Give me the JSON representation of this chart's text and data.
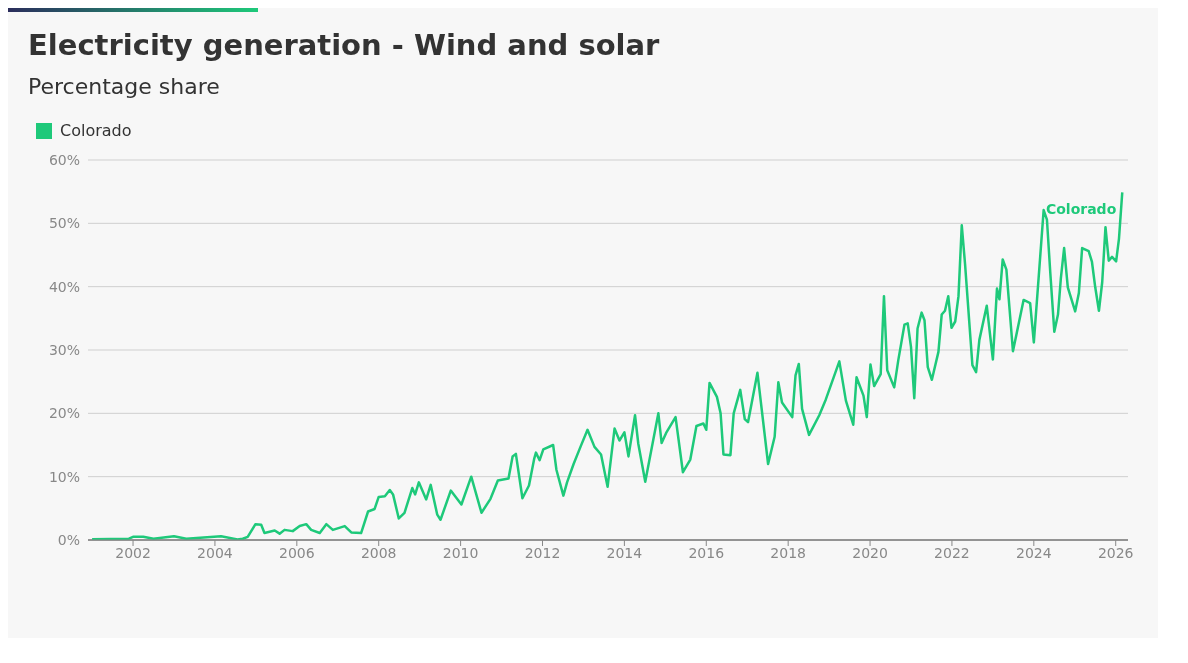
{
  "chart_data": {
    "type": "line",
    "title": "Electricity generation - Wind and solar",
    "subtitle": "Percentage share",
    "x": [
      2001.0,
      2001.9,
      2002.0,
      2002.25,
      2002.5,
      2003.0,
      2003.3,
      2004.15,
      2004.55,
      2004.68,
      2004.8,
      2004.99,
      2005.13,
      2005.21,
      2005.46,
      2005.58,
      2005.7,
      2005.9,
      2006.07,
      2006.23,
      2006.35,
      2006.56,
      2006.72,
      2006.88,
      2007.17,
      2007.33,
      2007.57,
      2007.74,
      2007.9,
      2008.0,
      2008.15,
      2008.27,
      2008.35,
      2008.49,
      2008.63,
      2008.82,
      2008.89,
      2008.98,
      2009.16,
      2009.27,
      2009.43,
      2009.51,
      2009.76,
      2010.02,
      2010.26,
      2010.51,
      2010.73,
      2010.91,
      2011.17,
      2011.27,
      2011.35,
      2011.51,
      2011.67,
      2011.8,
      2011.84,
      2011.93,
      2012.02,
      2012.26,
      2012.34,
      2012.51,
      2012.6,
      2012.76,
      2012.94,
      2013.1,
      2013.27,
      2013.43,
      2013.59,
      2013.76,
      2013.88,
      2014.0,
      2014.1,
      2014.26,
      2014.34,
      2014.51,
      2014.83,
      2014.91,
      2015.02,
      2015.25,
      2015.43,
      2015.61,
      2015.76,
      2015.93,
      2016.0,
      2016.08,
      2016.26,
      2016.35,
      2016.42,
      2016.59,
      2016.67,
      2016.83,
      2016.94,
      2017.02,
      2017.25,
      2017.51,
      2017.67,
      2017.76,
      2017.85,
      2018.1,
      2018.18,
      2018.26,
      2018.34,
      2018.51,
      2018.76,
      2018.92,
      2019.25,
      2019.41,
      2019.59,
      2019.67,
      2019.84,
      2019.92,
      2020.01,
      2020.1,
      2020.26,
      2020.34,
      2020.42,
      2020.59,
      2020.69,
      2020.84,
      2020.92,
      2021.0,
      2021.08,
      2021.16,
      2021.26,
      2021.33,
      2021.41,
      2021.51,
      2021.67,
      2021.75,
      2021.83,
      2021.91,
      2021.99,
      2022.08,
      2022.16,
      2022.24,
      2022.32,
      2022.5,
      2022.59,
      2022.67,
      2022.85,
      2023.0,
      2023.1,
      2023.16,
      2023.24,
      2023.33,
      2023.49,
      2023.75,
      2023.91,
      2024.0,
      2024.1,
      2024.24,
      2024.32,
      2024.4,
      2024.5,
      2024.59,
      2024.66,
      2024.74,
      2024.83,
      2025.01,
      2025.1,
      2025.18,
      2025.34,
      2025.42,
      2025.5,
      2025.59,
      2025.67,
      2025.75,
      2025.83,
      2025.91,
      2026.01,
      2026.08,
      2026.16
    ],
    "series": [
      {
        "name": "Colorado",
        "color": "#1ec97a",
        "values": [
          0.1,
          0.2,
          0.5,
          0.5,
          0.2,
          0.6,
          0.2,
          0.6,
          0.1,
          0.2,
          0.5,
          2.5,
          2.4,
          1.1,
          1.5,
          1.0,
          1.6,
          1.4,
          2.2,
          2.5,
          1.6,
          1.1,
          2.5,
          1.6,
          2.2,
          1.2,
          1.1,
          4.5,
          4.9,
          6.8,
          6.9,
          7.9,
          7.2,
          3.4,
          4.3,
          8.2,
          7.2,
          9.1,
          6.4,
          8.7,
          4.0,
          3.2,
          7.8,
          5.6,
          10.0,
          4.3,
          6.5,
          9.4,
          9.7,
          13.2,
          13.6,
          6.6,
          8.6,
          12.9,
          13.8,
          12.6,
          14.3,
          15.0,
          11.1,
          7.0,
          9.1,
          12.0,
          14.9,
          17.4,
          14.7,
          13.5,
          8.4,
          17.6,
          15.7,
          17.0,
          13.2,
          19.7,
          15.2,
          9.2,
          20.0,
          15.3,
          16.9,
          19.4,
          10.7,
          12.7,
          18.0,
          18.4,
          17.4,
          24.8,
          22.6,
          20.0,
          13.5,
          13.4,
          20.0,
          23.7,
          19.1,
          18.6,
          26.4,
          12.0,
          16.3,
          24.9,
          21.7,
          19.4,
          26.0,
          27.8,
          20.7,
          16.6,
          19.7,
          22.2,
          28.2,
          22.0,
          18.2,
          25.7,
          22.8,
          19.4,
          27.7,
          24.3,
          26.2,
          38.5,
          26.8,
          24.1,
          28.4,
          34.0,
          34.2,
          30.5,
          22.4,
          33.4,
          35.9,
          34.7,
          27.3,
          25.3,
          29.7,
          35.6,
          36.2,
          38.5,
          33.5,
          34.5,
          38.5,
          49.7,
          43.6,
          27.6,
          26.5,
          31.6,
          37.0,
          28.5,
          39.7,
          38.0,
          44.3,
          42.7,
          29.8,
          37.9,
          37.4,
          31.2,
          39.9,
          52.1,
          50.6,
          42.4,
          32.9,
          35.6,
          41.3,
          46.1,
          39.9,
          36.1,
          39.0,
          46.1,
          45.6,
          43.9,
          39.9,
          36.2,
          40.7,
          49.4,
          44.1,
          44.7,
          44.0,
          47.6,
          54.9
        ]
      }
    ],
    "xlim": [
      2000.9,
      2026.3
    ],
    "xticks": [
      2002,
      2004,
      2006,
      2008,
      2010,
      2012,
      2014,
      2016,
      2018,
      2020,
      2022,
      2024,
      2026
    ],
    "ylim": [
      0,
      60
    ],
    "yticks": [
      {
        "value": 0,
        "label": "0%"
      },
      {
        "value": 10,
        "label": "10%"
      },
      {
        "value": 20,
        "label": "20%"
      },
      {
        "value": 30,
        "label": "30%"
      },
      {
        "value": 40,
        "label": "40%"
      },
      {
        "value": 50,
        "label": "50%"
      },
      {
        "value": 60,
        "label": "60%"
      }
    ],
    "grid": "y",
    "legend": "top left",
    "marker": "none",
    "line_style": "solid"
  }
}
